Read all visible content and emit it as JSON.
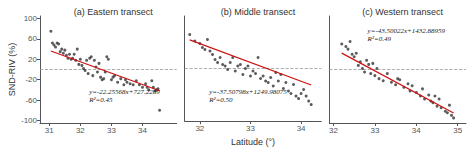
{
  "chart_data": [
    {
      "type": "scatter",
      "title": "(a) Eastern transect",
      "ylabel": "SND-RIV (%)",
      "annotation": "y=-22.25568x+727.2289\nR²=0.45",
      "xlim": [
        30.7,
        35.1
      ],
      "xticks": [
        31,
        32,
        33,
        34
      ],
      "ylim": [
        -105,
        105
      ],
      "yticks": [
        -100,
        -60,
        -20,
        20,
        60,
        100
      ],
      "grid": false,
      "hline": {
        "y": 0,
        "color": "#999999",
        "line_style": "dashed"
      },
      "series": [
        {
          "type": "scatter",
          "color": "#333333",
          "x": [
            31.05,
            31.1,
            31.15,
            31.2,
            31.25,
            31.3,
            31.35,
            31.4,
            31.45,
            31.5,
            31.55,
            31.6,
            31.65,
            31.7,
            31.75,
            31.8,
            31.85,
            31.9,
            31.95,
            32.0,
            32.05,
            32.1,
            32.15,
            32.2,
            32.25,
            32.3,
            32.35,
            32.4,
            32.45,
            32.5,
            32.55,
            32.6,
            32.65,
            32.7,
            32.75,
            32.8,
            32.85,
            32.9,
            33.0,
            33.05,
            33.1,
            33.2,
            33.3,
            33.4,
            33.45,
            33.5,
            33.6,
            33.7,
            33.8,
            33.9,
            34.0,
            34.1,
            34.15,
            34.2,
            34.3,
            34.35,
            34.4,
            34.45,
            34.5,
            34.55
          ],
          "values": [
            75,
            52,
            48,
            44,
            52,
            50,
            35,
            40,
            32,
            38,
            28,
            22,
            30,
            20,
            22,
            30,
            18,
            40,
            10,
            20,
            8,
            2,
            -2,
            18,
            -8,
            22,
            25,
            -12,
            18,
            5,
            -5,
            12,
            -15,
            -20,
            -18,
            -5,
            25,
            20,
            -20,
            -15,
            -12,
            -25,
            -18,
            -30,
            -20,
            -25,
            -28,
            -30,
            -22,
            -30,
            -35,
            -28,
            -35,
            -40,
            -22,
            -35,
            -42,
            -40,
            -38,
            -80
          ]
        },
        {
          "type": "line",
          "color": "#cc1111",
          "x": [
            31.05,
            34.55
          ],
          "values": [
            36.190036,
            -41.704844
          ]
        }
      ]
    },
    {
      "type": "scatter",
      "title": "(b) Middle transect",
      "xlabel": "Latitude (°)",
      "annotation": "y=-37.50798x+1249.98075\nR²=0.50",
      "xlim": [
        31.7,
        34.4
      ],
      "xticks": [
        32,
        33,
        34
      ],
      "ylim": [
        -105,
        105
      ],
      "tick_labels": "x",
      "grid": false,
      "hline": {
        "y": 0,
        "color": "#999999",
        "line_style": "dashed"
      },
      "series": [
        {
          "type": "scatter",
          "color": "#333333",
          "x": [
            31.8,
            31.9,
            32.0,
            32.05,
            32.1,
            32.15,
            32.2,
            32.25,
            32.3,
            32.35,
            32.4,
            32.45,
            32.5,
            32.55,
            32.6,
            32.65,
            32.7,
            32.75,
            32.8,
            32.85,
            32.9,
            32.95,
            33.0,
            33.05,
            33.1,
            33.15,
            33.2,
            33.25,
            33.3,
            33.35,
            33.4,
            33.45,
            33.5,
            33.55,
            33.6,
            33.65,
            33.7,
            33.75,
            33.8,
            33.85,
            33.9,
            33.95,
            34.0,
            34.05,
            34.1,
            34.15,
            34.2
          ],
          "values": [
            68,
            55,
            50,
            42,
            38,
            58,
            35,
            28,
            18,
            12,
            22,
            8,
            5,
            -2,
            12,
            22,
            -5,
            5,
            8,
            -12,
            0,
            5,
            -15,
            -5,
            -10,
            22,
            -20,
            -15,
            -25,
            -28,
            -18,
            -35,
            -8,
            -25,
            -12,
            -40,
            -28,
            -45,
            -50,
            -32,
            -55,
            -60,
            -50,
            -42,
            -55,
            -65,
            -72
          ]
        },
        {
          "type": "line",
          "color": "#cc1111",
          "x": [
            31.8,
            34.2
          ],
          "values": [
            57.226986,
            -32.792166
          ]
        }
      ]
    },
    {
      "type": "scatter",
      "title": "(c) Western transect",
      "annotation": "y=-43.50022x+1432.88959\nR²=0.49",
      "xlim": [
        31.9,
        35.2
      ],
      "xticks": [
        32,
        33,
        34,
        35
      ],
      "ylim": [
        -105,
        105
      ],
      "tick_labels": "x",
      "grid": false,
      "hline": {
        "y": 0,
        "color": "#999999",
        "line_style": "dashed"
      },
      "series": [
        {
          "type": "scatter",
          "color": "#333333",
          "x": [
            32.2,
            32.3,
            32.35,
            32.4,
            32.45,
            32.5,
            32.55,
            32.6,
            32.65,
            32.7,
            32.75,
            32.8,
            32.85,
            32.9,
            32.95,
            33.0,
            33.05,
            33.1,
            33.2,
            33.3,
            33.4,
            33.5,
            33.55,
            33.6,
            33.7,
            33.8,
            33.85,
            33.9,
            34.0,
            34.1,
            34.15,
            34.2,
            34.3,
            34.35,
            34.4,
            34.45,
            34.5,
            34.55,
            34.6,
            34.7,
            34.75,
            34.8,
            34.85,
            34.9
          ],
          "values": [
            50,
            45,
            40,
            55,
            30,
            25,
            32,
            8,
            15,
            2,
            -5,
            18,
            10,
            -8,
            12,
            -12,
            2,
            -18,
            -22,
            -8,
            -25,
            -30,
            -18,
            -20,
            -35,
            -28,
            -42,
            -32,
            -45,
            -52,
            -38,
            -58,
            -50,
            -62,
            -65,
            -52,
            -72,
            -58,
            -75,
            -82,
            -85,
            -70,
            -90,
            -95
          ]
        },
        {
          "type": "line",
          "color": "#cc1111",
          "x": [
            32.2,
            34.9
          ],
          "values": [
            32.182506,
            -85.268088
          ]
        }
      ]
    }
  ]
}
